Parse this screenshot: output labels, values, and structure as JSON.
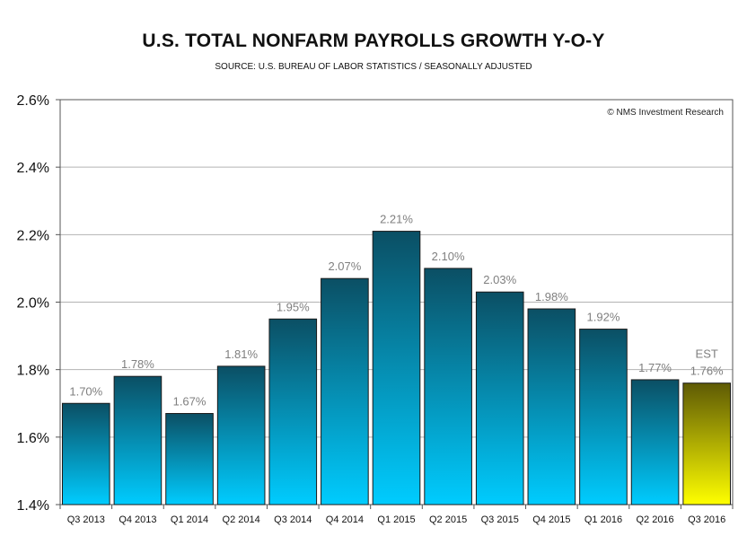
{
  "chart_data": {
    "type": "bar",
    "title": "U.S. TOTAL NONFARM PAYROLLS GROWTH Y-O-Y",
    "subtitle": "SOURCE: U.S. BUREAU OF LABOR STATISTICS / SEASONALLY ADJUSTED",
    "credit": "© NMS Investment Research",
    "categories": [
      "Q3 2013",
      "Q4 2013",
      "Q1 2014",
      "Q2 2014",
      "Q3 2014",
      "Q4 2014",
      "Q1 2015",
      "Q2 2015",
      "Q3 2015",
      "Q4 2015",
      "Q1 2016",
      "Q2 2016",
      "Q3 2016"
    ],
    "values": [
      1.7,
      1.78,
      1.67,
      1.81,
      1.95,
      2.07,
      2.21,
      2.1,
      2.03,
      1.98,
      1.92,
      1.77,
      1.76
    ],
    "data_labels": [
      "1.70%",
      "1.78%",
      "1.67%",
      "1.81%",
      "1.95%",
      "2.07%",
      "2.21%",
      "2.10%",
      "2.03%",
      "1.98%",
      "1.92%",
      "1.77%",
      "1.76%"
    ],
    "estimate_index": 12,
    "estimate_label": "EST",
    "ylim": [
      1.4,
      2.6
    ],
    "yticks": [
      1.4,
      1.6,
      1.8,
      2.0,
      2.2,
      2.4,
      2.6
    ],
    "ytick_labels": [
      "1.4%",
      "1.6%",
      "1.8%",
      "2.0%",
      "2.2%",
      "2.4%",
      "2.6%"
    ],
    "xlabel": "",
    "ylabel": "",
    "grid": true,
    "colors": {
      "bar_top": "#0b4f64",
      "bar_bottom": "#00ccff",
      "est_top": "#5e5a05",
      "est_bottom": "#ffff00",
      "label": "#7f7f7f",
      "grid": "#b3b3b3"
    }
  }
}
